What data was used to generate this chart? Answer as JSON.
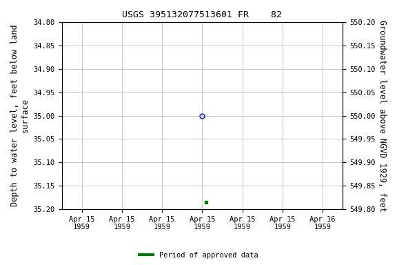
{
  "title": "USGS 395132077513601 FR    82",
  "ylabel_left": "Depth to water level, feet below land\nsurface",
  "ylabel_right": "Groundwater level above NGVD 1929, feet",
  "ylim_left": [
    35.2,
    34.8
  ],
  "ylim_right": [
    549.8,
    550.2
  ],
  "yticks_left": [
    34.8,
    34.85,
    34.9,
    34.95,
    35.0,
    35.05,
    35.1,
    35.15,
    35.2
  ],
  "yticks_right": [
    550.2,
    550.15,
    550.1,
    550.05,
    550.0,
    549.95,
    549.9,
    549.85,
    549.8
  ],
  "data_point_open": {
    "x": 3.0,
    "value": 35.0,
    "color": "#0000ff",
    "marker": "o",
    "markersize": 5
  },
  "data_point_filled": {
    "x": 3.1,
    "value": 35.185,
    "color": "#008000",
    "marker": "s",
    "markersize": 3.5
  },
  "xlim": [
    -0.5,
    6.5
  ],
  "xtick_positions": [
    0,
    1,
    2,
    3,
    4,
    5,
    6
  ],
  "xtick_labels": [
    "Apr 15\n1959",
    "Apr 15\n1959",
    "Apr 15\n1959",
    "Apr 15\n1959",
    "Apr 15\n1959",
    "Apr 15\n1959",
    "Apr 16\n1959"
  ],
  "background_color": "#ffffff",
  "grid_color": "#bbbbbb",
  "legend_label": "Period of approved data",
  "legend_color": "#008000",
  "title_fontsize": 9.5,
  "tick_fontsize": 7.5,
  "label_fontsize": 8.5
}
